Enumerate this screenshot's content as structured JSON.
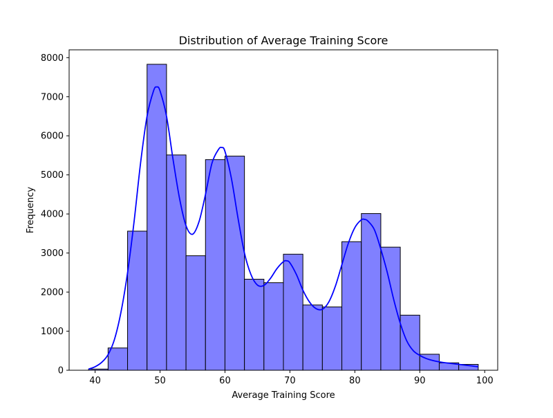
{
  "chart_data": {
    "type": "bar",
    "title": "Distribution of Average Training Score",
    "xlabel": "Average Training Score",
    "ylabel": "Frequency",
    "xlim": [
      36.0,
      102.0
    ],
    "ylim": [
      0,
      8200
    ],
    "xticks": [
      "40",
      "50",
      "60",
      "70",
      "80",
      "90",
      "100"
    ],
    "yticks": [
      "0",
      "1000",
      "2000",
      "3000",
      "4000",
      "5000",
      "6000",
      "7000",
      "8000"
    ],
    "grid": false,
    "bins": [
      {
        "x0": 39,
        "x1": 42,
        "value": 30
      },
      {
        "x0": 42,
        "x1": 45,
        "value": 570
      },
      {
        "x0": 45,
        "x1": 48,
        "value": 3560
      },
      {
        "x0": 48,
        "x1": 51,
        "value": 7830
      },
      {
        "x0": 51,
        "x1": 54,
        "value": 5510
      },
      {
        "x0": 54,
        "x1": 57,
        "value": 2930
      },
      {
        "x0": 57,
        "x1": 60,
        "value": 5390
      },
      {
        "x0": 60,
        "x1": 63,
        "value": 5480
      },
      {
        "x0": 63,
        "x1": 66,
        "value": 2330
      },
      {
        "x0": 66,
        "x1": 69,
        "value": 2240
      },
      {
        "x0": 69,
        "x1": 72,
        "value": 2970
      },
      {
        "x0": 72,
        "x1": 75,
        "value": 1670
      },
      {
        "x0": 75,
        "x1": 78,
        "value": 1620
      },
      {
        "x0": 78,
        "x1": 81,
        "value": 3290
      },
      {
        "x0": 81,
        "x1": 84,
        "value": 4010
      },
      {
        "x0": 84,
        "x1": 87,
        "value": 3150
      },
      {
        "x0": 87,
        "x1": 90,
        "value": 1410
      },
      {
        "x0": 90,
        "x1": 93,
        "value": 410
      },
      {
        "x0": 93,
        "x1": 96,
        "value": 190
      },
      {
        "x0": 96,
        "x1": 99,
        "value": 150
      }
    ],
    "kde": {
      "x": [
        39,
        40,
        41,
        42,
        43,
        44,
        45,
        46,
        47,
        48,
        49,
        49.5,
        50,
        51,
        52,
        53,
        54,
        55,
        56,
        57,
        58,
        59,
        59.5,
        60,
        61,
        62,
        63,
        64,
        65,
        66,
        67,
        68,
        69,
        69.5,
        70,
        71,
        72,
        73,
        74,
        75,
        76,
        77,
        78,
        79,
        80,
        81,
        81.5,
        82,
        83,
        84,
        85,
        86,
        87,
        88,
        89,
        90,
        91,
        92,
        93,
        94,
        95,
        96,
        97,
        98,
        99
      ],
      "y": [
        30,
        90,
        200,
        400,
        800,
        1500,
        2500,
        3800,
        5300,
        6500,
        7150,
        7250,
        7150,
        6500,
        5400,
        4400,
        3700,
        3480,
        3800,
        4500,
        5300,
        5650,
        5700,
        5600,
        4900,
        3900,
        3000,
        2450,
        2180,
        2170,
        2350,
        2600,
        2780,
        2800,
        2750,
        2450,
        2050,
        1750,
        1580,
        1560,
        1750,
        2150,
        2700,
        3250,
        3650,
        3850,
        3860,
        3820,
        3600,
        3100,
        2500,
        1800,
        1200,
        750,
        500,
        380,
        300,
        250,
        215,
        190,
        170,
        150,
        130,
        110,
        90
      ]
    },
    "colors": {
      "bar_fill": "#8080ff",
      "bar_edge": "#000000",
      "kde_line": "#0000ff"
    }
  }
}
